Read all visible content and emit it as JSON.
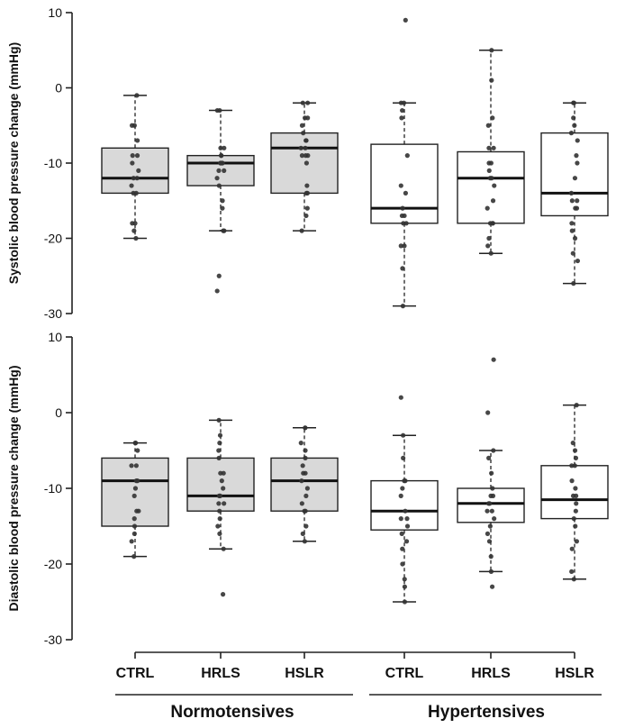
{
  "chart_data": {
    "type": "boxplot",
    "categories": [
      "CTRL",
      "HRLS",
      "HSLR",
      "CTRL",
      "HRLS",
      "HSLR"
    ],
    "groups": [
      {
        "label": "Normotensives",
        "categories": [
          0,
          1,
          2
        ],
        "fill": "#d9d9d9"
      },
      {
        "label": "Hypertensives",
        "categories": [
          3,
          4,
          5
        ],
        "fill": "#ffffff"
      }
    ],
    "ylim": [
      -30,
      10
    ],
    "yticks": [
      10,
      0,
      -10,
      -20,
      -30
    ],
    "panels": [
      {
        "ylabel": "Systolic blood pressure change (mmHg)",
        "boxes": [
          {
            "q1": -14,
            "median": -12,
            "q3": -8,
            "whisker_low": -20,
            "whisker_high": -1,
            "points": [
              -1,
              -5,
              -5,
              -7,
              -9,
              -9,
              -10,
              -11,
              -12,
              -12,
              -13,
              -14,
              -14,
              -18,
              -18,
              -19,
              -20
            ]
          },
          {
            "q1": -13,
            "median": -10,
            "q3": -9,
            "whisker_low": -19,
            "whisker_high": -3,
            "points": [
              -3,
              -3,
              -8,
              -8,
              -9,
              -9,
              -10,
              -10,
              -10,
              -10,
              -11,
              -11,
              -12,
              -13,
              -15,
              -16,
              -19,
              -19,
              -25,
              -27
            ]
          },
          {
            "q1": -14,
            "median": -8,
            "q3": -6,
            "whisker_low": -19,
            "whisker_high": -2,
            "points": [
              -2,
              -2,
              -4,
              -4,
              -5,
              -6,
              -7,
              -7,
              -8,
              -8,
              -9,
              -9,
              -9,
              -10,
              -13,
              -14,
              -14,
              -16,
              -17,
              -19
            ]
          },
          {
            "q1": -18,
            "median": -16,
            "q3": -7.5,
            "whisker_low": -29,
            "whisker_high": -2,
            "points": [
              9,
              -2,
              -2,
              -3,
              -4,
              -9,
              -13,
              -14,
              -16,
              -17,
              -17,
              -18,
              -18,
              -21,
              -21,
              -24,
              -29
            ]
          },
          {
            "q1": -18,
            "median": -12,
            "q3": -8.5,
            "whisker_low": -22,
            "whisker_high": 5,
            "points": [
              5,
              1,
              -4,
              -5,
              -8,
              -8,
              -10,
              -10,
              -11,
              -12,
              -12,
              -13,
              -15,
              -16,
              -18,
              -18,
              -18,
              -20,
              -21,
              -22
            ]
          },
          {
            "q1": -17,
            "median": -14,
            "q3": -6,
            "whisker_low": -26,
            "whisker_high": -2,
            "points": [
              -2,
              -2,
              -4,
              -5,
              -6,
              -7,
              -9,
              -10,
              -12,
              -14,
              -15,
              -15,
              -16,
              -16,
              -18,
              -19,
              -20,
              -22,
              -23,
              -26
            ]
          }
        ]
      },
      {
        "ylabel": "Diastolic blood pressure change (mmHg)",
        "boxes": [
          {
            "q1": -15,
            "median": -9,
            "q3": -6,
            "whisker_low": -19,
            "whisker_high": -4,
            "points": [
              -4,
              -4,
              -5,
              -7,
              -7,
              -9,
              -9,
              -10,
              -11,
              -13,
              -13,
              -14,
              -15,
              -16,
              -17,
              -19
            ]
          },
          {
            "q1": -13,
            "median": -11,
            "q3": -6,
            "whisker_low": -18,
            "whisker_high": -1,
            "points": [
              -1,
              -3,
              -4,
              -5,
              -6,
              -8,
              -8,
              -9,
              -10,
              -11,
              -11,
              -12,
              -12,
              -13,
              -14,
              -15,
              -16,
              -18,
              -24
            ]
          },
          {
            "q1": -13,
            "median": -9,
            "q3": -6,
            "whisker_low": -17,
            "whisker_high": -2,
            "points": [
              -2,
              -2,
              -4,
              -5,
              -6,
              -7,
              -8,
              -8,
              -9,
              -10,
              -11,
              -12,
              -13,
              -13,
              -15,
              -16,
              -17
            ]
          },
          {
            "q1": -15.5,
            "median": -13,
            "q3": -9,
            "whisker_low": -25,
            "whisker_high": -3,
            "points": [
              2,
              -3,
              -6,
              -9,
              -9,
              -10,
              -11,
              -13,
              -14,
              -14,
              -15,
              -16,
              -17,
              -18,
              -20,
              -22,
              -23,
              -25
            ]
          },
          {
            "q1": -14.5,
            "median": -12,
            "q3": -10,
            "whisker_low": -21,
            "whisker_high": -5,
            "points": [
              7,
              0,
              -5,
              -6,
              -8,
              -10,
              -11,
              -11,
              -12,
              -12,
              -13,
              -13,
              -14,
              -15,
              -16,
              -17,
              -19,
              -21,
              -23
            ]
          },
          {
            "q1": -14,
            "median": -11.5,
            "q3": -7,
            "whisker_low": -22,
            "whisker_high": 1,
            "points": [
              1,
              -4,
              -5,
              -6,
              -7,
              -7,
              -9,
              -10,
              -11,
              -11,
              -12,
              -13,
              -14,
              -15,
              -17,
              -18,
              -21,
              -22
            ]
          }
        ]
      }
    ]
  }
}
